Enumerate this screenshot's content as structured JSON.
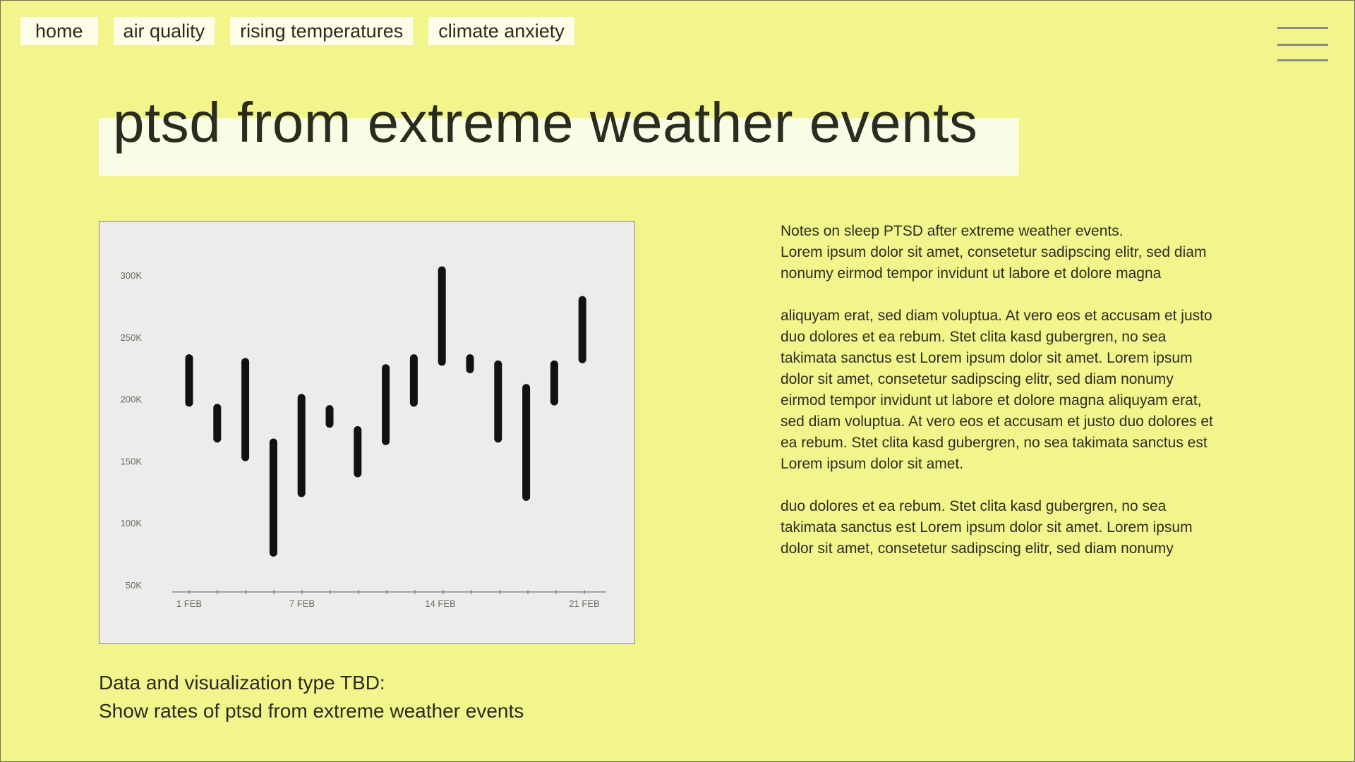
{
  "nav": {
    "items": [
      {
        "label": "home"
      },
      {
        "label": "air quality"
      },
      {
        "label": "rising temperatures"
      },
      {
        "label": "climate anxiety"
      }
    ]
  },
  "menu": {
    "icon": "hamburger-menu-icon"
  },
  "page": {
    "title": "ptsd from extreme weather events"
  },
  "chart_data": {
    "type": "bar",
    "subtype": "floating-range",
    "x_tick_labels": [
      "1 FEB",
      "7 FEB",
      "14 FEB",
      "21 FEB"
    ],
    "y_tick_labels": [
      "300K",
      "250K",
      "200K",
      "150K",
      "100K",
      "50K"
    ],
    "ylim": [
      50000,
      300000
    ],
    "categories": [
      "1",
      "2",
      "3",
      "4",
      "5",
      "6",
      "7",
      "8",
      "9",
      "10",
      "11",
      "12",
      "13",
      "14",
      "15"
    ],
    "ranges": [
      [
        197000,
        233000
      ],
      [
        168000,
        193000
      ],
      [
        153000,
        230000
      ],
      [
        76000,
        165000
      ],
      [
        124000,
        201000
      ],
      [
        180000,
        192000
      ],
      [
        140000,
        175000
      ],
      [
        166000,
        225000
      ],
      [
        197000,
        233000
      ],
      [
        230000,
        304000
      ],
      [
        224000,
        233000
      ],
      [
        168000,
        228000
      ],
      [
        121000,
        209000
      ],
      [
        198000,
        228000
      ],
      [
        232000,
        280000
      ]
    ],
    "bar_color": "#111111",
    "grid": false
  },
  "caption": {
    "line1": "Data and visualization type TBD:",
    "line2": "Show rates of ptsd from extreme weather events"
  },
  "notes": {
    "paragraphs": [
      [
        "Notes on sleep PTSD after extreme weather events.",
        "Lorem ipsum dolor sit amet, consetetur sadipscing elitr, sed diam",
        "nonumy eirmod tempor invidunt ut labore et dolore magna"
      ],
      [
        "aliquyam erat, sed diam voluptua. At vero eos et accusam et justo",
        "duo dolores et ea rebum. Stet clita kasd gubergren, no sea",
        "takimata sanctus est Lorem ipsum dolor sit amet. Lorem ipsum",
        "dolor sit amet, consetetur sadipscing elitr, sed diam nonumy",
        "eirmod tempor invidunt ut labore et dolore magna aliquyam erat,",
        "sed diam voluptua. At vero eos et accusam et justo duo dolores et",
        "ea rebum. Stet clita kasd gubergren, no sea takimata sanctus est",
        "Lorem ipsum dolor sit amet."
      ],
      [
        "duo dolores et ea rebum. Stet clita kasd gubergren, no sea",
        "takimata sanctus est Lorem ipsum dolor sit amet. Lorem ipsum",
        "dolor sit amet, consetetur sadipscing elitr, sed diam nonumy"
      ]
    ]
  }
}
